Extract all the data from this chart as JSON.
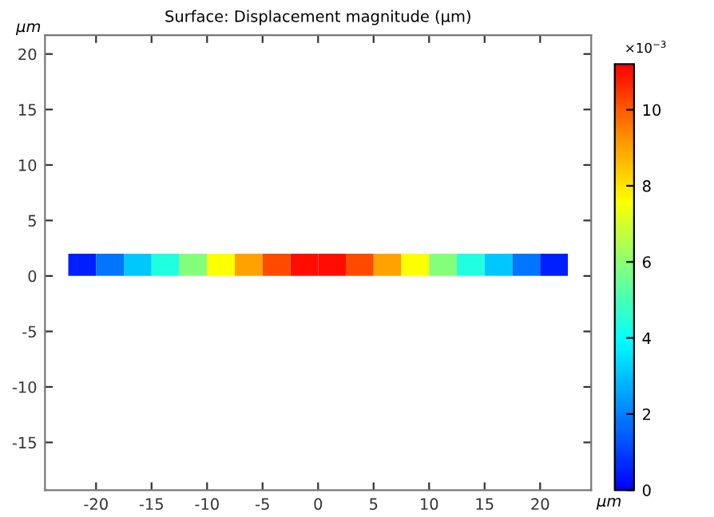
{
  "chart_data": {
    "type": "heatmap",
    "title": "Surface: Displacement magnitude (µm)",
    "xlabel": "µm",
    "ylabel": "µm",
    "clabel": "×10$^{−3}$",
    "x": [
      -21.25,
      -18.75,
      -16.25,
      -13.75,
      -11.25,
      -8.75,
      -6.25,
      -3.75,
      -1.25,
      1.25,
      3.75,
      6.25,
      8.75,
      11.25,
      13.75,
      16.25,
      18.75,
      21.25
    ],
    "y": [
      1.5,
      0.5
    ],
    "cells": [
      [
        0.5,
        1.8,
        3.1,
        4.4,
        5.9,
        7.6,
        9.0,
        10.2,
        11.0,
        11.0,
        10.2,
        9.0,
        7.6,
        5.9,
        4.4,
        3.1,
        1.8,
        0.5
      ],
      [
        0.5,
        1.8,
        3.1,
        4.4,
        5.9,
        7.6,
        9.0,
        10.2,
        11.0,
        11.0,
        10.2,
        9.0,
        7.6,
        5.9,
        4.4,
        3.1,
        1.8,
        0.5
      ]
    ],
    "clim": [
      0,
      11.2
    ],
    "cticks": [
      0,
      2,
      4,
      6,
      8,
      10
    ],
    "xlim": [
      -24.6,
      24.6
    ],
    "ylim": [
      -19.3,
      21.7
    ],
    "xticks": [
      -20,
      -15,
      -10,
      -5,
      0,
      5,
      10,
      15,
      20
    ],
    "yticks": [
      -15,
      -10,
      -5,
      0,
      5,
      10,
      15,
      20
    ]
  }
}
